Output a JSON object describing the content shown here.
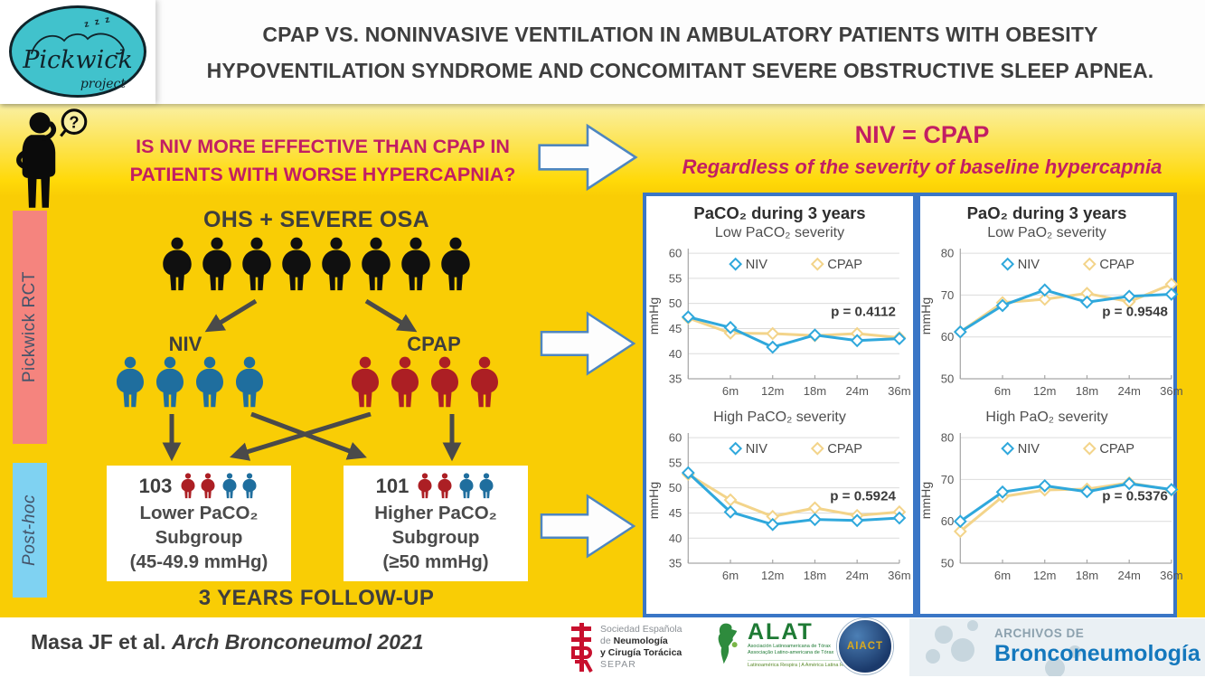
{
  "header": {
    "logo": {
      "name": "Pickwick",
      "project": "project",
      "zzz": "z z z"
    },
    "title_line1": "CPAP VS. NONINVASIVE VENTILATION IN AMBULATORY PATIENTS WITH OBESITY",
    "title_line2": "HYPOVENTILATION SYNDROME AND CONCOMITANT SEVERE OBSTRUCTIVE SLEEP APNEA."
  },
  "question_band": {
    "line1": "IS NIV MORE EFFECTIVE THAN CPAP IN",
    "line2": "PATIENTS WITH WORSE HYPERCAPNIA?",
    "thinker_mark": "?"
  },
  "conclusion": {
    "title": "NIV = CPAP",
    "subtitle": "Regardless of the severity of baseline hypercapnia"
  },
  "side_labels": {
    "rct": "Pickwick RCT",
    "posthoc": "Post-hoc"
  },
  "flowchart": {
    "cohort_label": "OHS + SEVERE OSA",
    "cohort_count": 8,
    "niv_label": "NIV",
    "niv_count": 4,
    "cpap_label": "CPAP",
    "cpap_count": 4,
    "lower_box": {
      "n": "103",
      "red": 2,
      "blue": 2,
      "line1": "Lower PaCO₂",
      "line2": "Subgroup",
      "line3": "(45-49.9 mmHg)"
    },
    "higher_box": {
      "n": "101",
      "red": 2,
      "blue": 2,
      "line1": "Higher PaCO₂",
      "line2": "Subgroup",
      "line3": "(≥50 mmHg)"
    },
    "followup": "3 YEARS FOLLOW-UP"
  },
  "citation": {
    "authors": "Masa JF et al.",
    "journal": "Arch Bronconeumol 2021"
  },
  "footer_logos": {
    "separ": {
      "line1": "Sociedad Española",
      "line2_pre": "de ",
      "line2_bold": "Neumología",
      "line3": "y Cirugía Torácica",
      "line4": "SEPAR"
    },
    "alat": {
      "name": "ALAT",
      "sub1": "Asociación Latinoamericana de Tórax",
      "sub2": "Associação Latino-americana de Tórax",
      "tagline": "Latinoamérica Respira | A América Latina Respira"
    },
    "aiact": {
      "name": "AIACT"
    },
    "archivos": {
      "line1": "ARCHIVOS DE",
      "line2": "Bronconeumología"
    }
  },
  "colors": {
    "gold_background": "#F9CD05",
    "magenta_text": "#C21E63",
    "panel_border": "#3A76C6",
    "rct_bar": "#F5847E",
    "posthoc_bar": "#7FD2F2",
    "person_black": "#101010",
    "person_blue": "#1F6E9E",
    "person_red": "#AC1F24",
    "niv_line": "#2FA8DC",
    "cpap_line": "#F3D48A"
  },
  "chart_data": [
    {
      "panel_title": "PaCO₂ during 3 years",
      "charts": [
        {
          "type": "line",
          "subtitle": "Low PaCO₂ severity",
          "p_label": "p = 0.4112",
          "ylabel": "mmHg",
          "ylim": [
            35,
            60
          ],
          "yticks": [
            35,
            40,
            45,
            50,
            55,
            60
          ],
          "x_categories": [
            "",
            "6m",
            "12m",
            "18m",
            "24m",
            "36m"
          ],
          "series": [
            {
              "name": "NIV",
              "color": "#2FA8DC",
              "values": [
                47.3,
                45.2,
                41.3,
                43.7,
                42.6,
                43.0
              ]
            },
            {
              "name": "CPAP",
              "color": "#F3D48A",
              "values": [
                47.1,
                44.1,
                44.0,
                43.6,
                44.0,
                43.2
              ]
            }
          ]
        },
        {
          "type": "line",
          "subtitle": "High PaCO₂ severity",
          "p_label": "p = 0.5924",
          "ylabel": "mmHg",
          "ylim": [
            35,
            60
          ],
          "yticks": [
            35,
            40,
            45,
            50,
            55,
            60
          ],
          "x_categories": [
            "",
            "6m",
            "12m",
            "18m",
            "24m",
            "36m"
          ],
          "series": [
            {
              "name": "NIV",
              "color": "#2FA8DC",
              "values": [
                53.0,
                45.2,
                42.7,
                43.7,
                43.5,
                44.0
              ]
            },
            {
              "name": "CPAP",
              "color": "#F3D48A",
              "values": [
                52.7,
                47.6,
                44.3,
                46.0,
                44.5,
                45.2
              ]
            }
          ]
        }
      ]
    },
    {
      "panel_title": "PaO₂ during 3 years",
      "charts": [
        {
          "type": "line",
          "subtitle": "Low PaO₂ severity",
          "p_label": "p = 0.9548",
          "ylabel": "mmHg",
          "ylim": [
            50,
            80
          ],
          "yticks": [
            50,
            60,
            70,
            80
          ],
          "x_categories": [
            "",
            "6m",
            "12m",
            "18m",
            "24m",
            "36m"
          ],
          "series": [
            {
              "name": "NIV",
              "color": "#2FA8DC",
              "values": [
                61.2,
                67.5,
                71.2,
                68.3,
                69.7,
                70.2
              ]
            },
            {
              "name": "CPAP",
              "color": "#F3D48A",
              "values": [
                61.2,
                68.2,
                69.0,
                70.4,
                68.4,
                72.6
              ]
            }
          ]
        },
        {
          "type": "line",
          "subtitle": "High PaO₂ severity",
          "p_label": "p = 0.5376",
          "ylabel": "mmHg",
          "ylim": [
            50,
            80
          ],
          "yticks": [
            50,
            60,
            70,
            80
          ],
          "x_categories": [
            "",
            "6m",
            "12m",
            "18m",
            "24m",
            "36m"
          ],
          "series": [
            {
              "name": "NIV",
              "color": "#2FA8DC",
              "values": [
                60.0,
                67.0,
                68.5,
                67.1,
                69.0,
                67.6
              ]
            },
            {
              "name": "CPAP",
              "color": "#F3D48A",
              "values": [
                57.6,
                65.9,
                67.5,
                67.7,
                69.2,
                67.5
              ]
            }
          ]
        }
      ]
    }
  ]
}
